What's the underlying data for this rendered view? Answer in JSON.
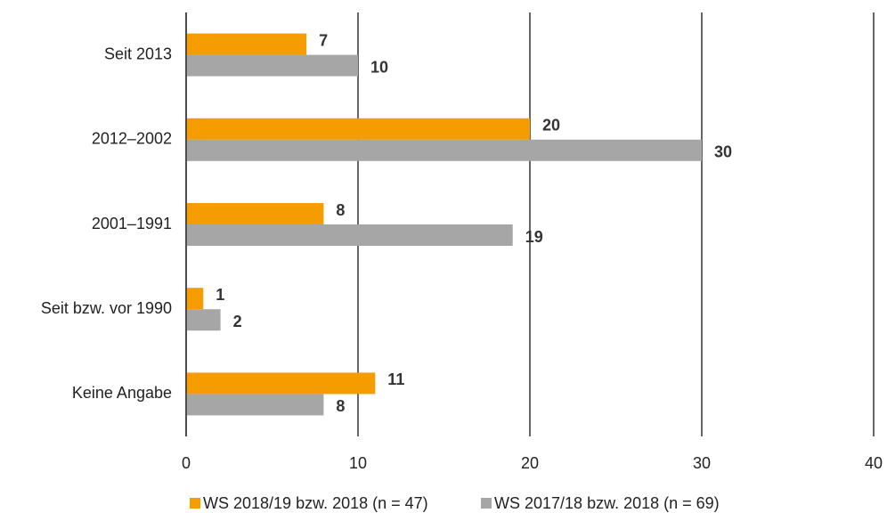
{
  "chart_data": {
    "type": "hbar",
    "categories": [
      "Seit 2013",
      "2012–2002",
      "2001–1991",
      "Seit bzw. vor 1990",
      "Keine Angabe"
    ],
    "series": [
      {
        "name": "WS 2018/19 bzw. 2018 (n = 47)",
        "color": "#f59c00",
        "values": [
          7,
          20,
          8,
          1,
          11
        ]
      },
      {
        "name": "WS 2017/18 bzw. 2018 (n = 69)",
        "color": "#a6a6a6",
        "values": [
          10,
          30,
          19,
          2,
          8
        ]
      }
    ],
    "xlim": [
      0,
      40
    ],
    "xticks": [
      0,
      10,
      20,
      30,
      40
    ],
    "grid": true,
    "legend": "bottom"
  }
}
